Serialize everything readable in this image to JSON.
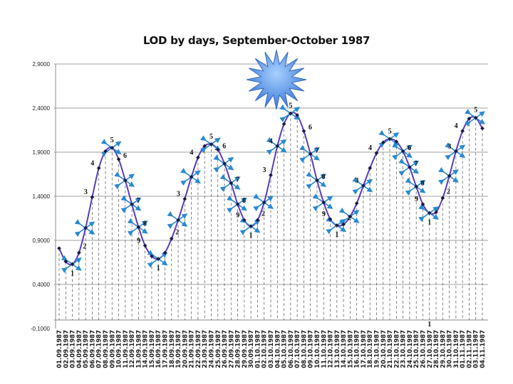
{
  "chart_data": {
    "type": "line",
    "title": "LOD by days, September-October 1987",
    "xlabel": "",
    "ylabel": "",
    "ylim": [
      -0.1,
      2.9
    ],
    "yticks": [
      "2,9000",
      "2,4000",
      "1,9000",
      "1,4000",
      "0,9000",
      "0,4000",
      "-0,1000"
    ],
    "ytick_values": [
      2.9,
      2.4,
      1.9,
      1.4,
      0.9,
      0.4,
      -0.1
    ],
    "grid": "horizontal gridlines; dashed vertical drop lines at each day",
    "legend": "none",
    "categories": [
      "01.09.1987",
      "02.09.1987",
      "03.09.1987",
      "04.09.1987",
      "05.09.1987",
      "06.09.1987",
      "07.09.1987",
      "08.09.1987",
      "09.09.1987",
      "10.09.1987",
      "11.09.1987",
      "12.09.1987",
      "13.09.1987",
      "14.09.1987",
      "15.09.1987",
      "16.09.1987",
      "17.09.1987",
      "18.09.1987",
      "19.09.1987",
      "20.09.1987",
      "21.09.1987",
      "22.09.1987",
      "23.09.1987",
      "24.09.1987",
      "25.09.1987",
      "26.09.1987",
      "27.09.1987",
      "28.09.1987",
      "29.09.1987",
      "30.09.1987",
      "01.10.1987",
      "02.10.1987",
      "03.10.1987",
      "04.10.1987",
      "05.10.1987",
      "06.10.1987",
      "07.10.1987",
      "08.10.1987",
      "09.10.1987",
      "10.10.1987",
      "11.10.1987",
      "12.10.1987",
      "13.10.1987",
      "14.10.1987",
      "15.10.1987",
      "16.10.1987",
      "17.10.1987",
      "18.10.1987",
      "19.10.1987",
      "20.10.1987",
      "21.10.1987",
      "22.10.1987",
      "23.10.1987",
      "24.10.1987",
      "25.10.1987",
      "26.10.1987",
      "27.10.1987",
      "28.10.1987",
      "29.10.1987",
      "30.10.1987",
      "31.10.1987",
      "01.11.1987",
      "02.11.1987",
      "03.11.1987",
      "04.11.1987"
    ],
    "values": [
      0.81,
      0.66,
      0.63,
      0.76,
      1.04,
      1.39,
      1.72,
      1.91,
      1.95,
      1.82,
      1.58,
      1.31,
      1.05,
      0.84,
      0.72,
      0.69,
      0.76,
      0.92,
      1.13,
      1.37,
      1.62,
      1.84,
      1.97,
      1.99,
      1.93,
      1.77,
      1.55,
      1.31,
      1.13,
      1.06,
      1.13,
      1.33,
      1.64,
      1.97,
      2.22,
      2.34,
      2.32,
      2.14,
      1.88,
      1.58,
      1.33,
      1.14,
      1.07,
      1.08,
      1.17,
      1.32,
      1.52,
      1.72,
      1.89,
      2.01,
      2.05,
      2.02,
      1.91,
      1.73,
      1.51,
      1.31,
      1.21,
      1.22,
      1.38,
      1.63,
      1.91,
      2.14,
      2.28,
      2.29,
      2.17
    ],
    "annotations": [
      {
        "index": 2,
        "label": "1"
      },
      {
        "index": 3,
        "label": "2"
      },
      {
        "index": 5,
        "label": "3"
      },
      {
        "index": 6,
        "label": "4"
      },
      {
        "index": 8,
        "label": "5"
      },
      {
        "index": 9,
        "label": "6"
      },
      {
        "index": 11,
        "label": "7"
      },
      {
        "index": 12,
        "label": "8"
      },
      {
        "index": 13,
        "label": "9"
      },
      {
        "index": 15,
        "label": "1"
      },
      {
        "index": 17,
        "label": "2"
      },
      {
        "index": 19,
        "label": "3"
      },
      {
        "index": 21,
        "label": "4"
      },
      {
        "index": 23,
        "label": "5"
      },
      {
        "index": 24,
        "label": "6"
      },
      {
        "index": 26,
        "label": "7"
      },
      {
        "index": 27,
        "label": "8"
      },
      {
        "index": 28,
        "label": "9"
      },
      {
        "index": 29,
        "label": "1"
      },
      {
        "index": 30,
        "label": "2"
      },
      {
        "index": 32,
        "label": "3"
      },
      {
        "index": 33,
        "label": "4"
      },
      {
        "index": 35,
        "label": "5"
      },
      {
        "index": 37,
        "label": "6"
      },
      {
        "index": 38,
        "label": "7"
      },
      {
        "index": 39,
        "label": "8"
      },
      {
        "index": 41,
        "label": "9"
      },
      {
        "index": 42,
        "label": "1"
      },
      {
        "index": 43,
        "label": "2"
      },
      {
        "index": 46,
        "label": "3"
      },
      {
        "index": 48,
        "label": "4"
      },
      {
        "index": 50,
        "label": "5"
      },
      {
        "index": 52,
        "label": "6"
      },
      {
        "index": 53,
        "label": "7"
      },
      {
        "index": 54,
        "label": "8"
      },
      {
        "index": 55,
        "label": "9"
      },
      {
        "index": 56,
        "label": "1"
      },
      {
        "index": 58,
        "label": "2"
      },
      {
        "index": 60,
        "label": "3"
      },
      {
        "index": 61,
        "label": "4"
      },
      {
        "index": 63,
        "label": "5"
      }
    ],
    "axis_annotation": {
      "index": 56,
      "label": "1"
    },
    "arrow_markers": [
      2,
      4,
      8,
      10,
      11,
      12,
      15,
      18,
      20,
      23,
      25,
      26,
      27,
      29,
      31,
      33,
      35,
      38,
      39,
      40,
      42,
      44,
      46,
      50,
      52,
      53,
      54,
      56,
      59,
      60,
      63
    ],
    "colors": {
      "line": "#5a3cc0",
      "markers": "#1a1a40",
      "arrows": "#2a8ad0",
      "star": "#4a8ee0",
      "grid": "#a0a0a0"
    }
  }
}
